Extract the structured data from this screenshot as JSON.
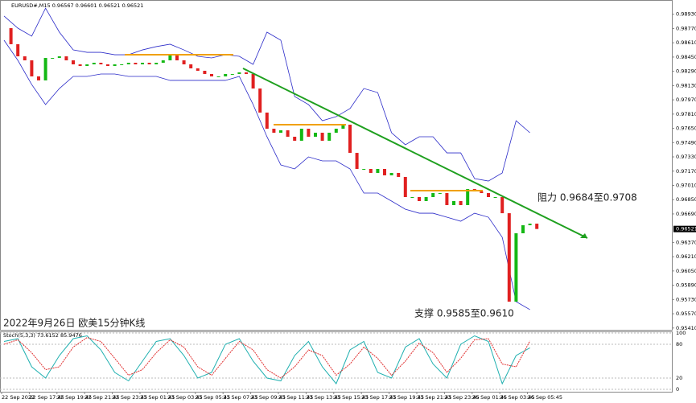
{
  "chart_data": {
    "type": "candlestick",
    "header": "EURUSD#,M15 0.96567 0.96601 0.96521 0.96521",
    "title": "2022年9月26日 欧美15分钟K线",
    "annotations": [
      "阻力 0.9684至0.9708",
      "支撑 0.9585至0.9610"
    ],
    "ylim": [
      0.9539,
      0.9909
    ],
    "yticks": [
      {
        "value": 0.9893,
        "label": "0.98930"
      },
      {
        "value": 0.9877,
        "label": "0.98770"
      },
      {
        "value": 0.9861,
        "label": "0.98610"
      },
      {
        "value": 0.9845,
        "label": "0.98450"
      },
      {
        "value": 0.9829,
        "label": "0.98290"
      },
      {
        "value": 0.9813,
        "label": "0.98130"
      },
      {
        "value": 0.9797,
        "label": "0.97970"
      },
      {
        "value": 0.9781,
        "label": "0.97810"
      },
      {
        "value": 0.9765,
        "label": "0.97650"
      },
      {
        "value": 0.9749,
        "label": "0.97490"
      },
      {
        "value": 0.9733,
        "label": "0.97330"
      },
      {
        "value": 0.9717,
        "label": "0.97170"
      },
      {
        "value": 0.9701,
        "label": "0.97010"
      },
      {
        "value": 0.9685,
        "label": "0.96850"
      },
      {
        "value": 0.9669,
        "label": "0.96690"
      },
      {
        "value": 0.9637,
        "label": "0.96370"
      },
      {
        "value": 0.9621,
        "label": "0.96210"
      },
      {
        "value": 0.9605,
        "label": "0.96050"
      },
      {
        "value": 0.9589,
        "label": "0.95890"
      },
      {
        "value": 0.9573,
        "label": "0.95730"
      },
      {
        "value": 0.9557,
        "label": "0.95570"
      },
      {
        "value": 0.9541,
        "label": "0.95410"
      }
    ],
    "last_price": {
      "value": 0.96521,
      "label": "0.96521"
    },
    "time_labels": [
      "22 Sep 2022",
      "22 Sep 17:45",
      "22 Sep 19:45",
      "22 Sep 21:45",
      "22 Sep 23:45",
      "23 Sep 01:45",
      "23 Sep 03:45",
      "23 Sep 05:45",
      "23 Sep 07:45",
      "23 Sep 09:45",
      "23 Sep 11:45",
      "23 Sep 13:45",
      "23 Sep 15:45",
      "23 Sep 17:45",
      "23 Sep 19:45",
      "23 Sep 21:45",
      "23 Sep 23:45",
      "26 Sep 01:45",
      "26 Sep 03:45",
      "26 Sep 05:45"
    ],
    "up_color": "#14b814",
    "down_color": "#e02020",
    "closes": [
      0.98774,
      0.98594,
      0.98458,
      0.98413,
      0.98233,
      0.98188,
      0.9844,
      0.9844,
      0.98458,
      0.98413,
      0.98368,
      0.9835,
      0.98368,
      0.98386,
      0.98368,
      0.9835,
      0.98368,
      0.98368,
      0.98386,
      0.98368,
      0.98386,
      0.98368,
      0.98386,
      0.98413,
      0.98476,
      0.98413,
      0.98368,
      0.98323,
      0.98296,
      0.9826,
      0.98233,
      0.98233,
      0.9826,
      0.9826,
      0.98278,
      0.9826,
      0.98097,
      0.97827,
      0.97646,
      0.97601,
      0.97628,
      0.97556,
      0.97511,
      0.97646,
      0.97556,
      0.97601,
      0.97511,
      0.97601,
      0.97646,
      0.97691,
      0.97375,
      0.97195,
      0.97195,
      0.9715,
      0.97195,
      0.97123,
      0.9715,
      0.97105,
      0.96879,
      0.96879,
      0.96834,
      0.96879,
      0.96924,
      0.96924,
      0.96789,
      0.96834,
      0.96789,
      0.96969,
      0.96942,
      0.96924,
      0.96879,
      0.96879,
      0.96698,
      0.95706,
      0.96473,
      0.96563,
      0.96581,
      0.96521
    ],
    "bands": {
      "color": "#2a2ac8",
      "upper": [
        0.9891,
        0.98774,
        0.98684,
        0.98998,
        0.98729,
        0.9853,
        0.98503,
        0.98503,
        0.98476,
        0.98476,
        0.9853,
        0.98567,
        0.98594,
        0.9853,
        0.98458,
        0.9844,
        0.98476,
        0.98458,
        0.98368,
        0.98729,
        0.98639,
        0.98007,
        0.97917,
        0.97736,
        0.97781,
        0.97872,
        0.98097,
        0.98052,
        0.97601,
        0.97466,
        0.97556,
        0.97556,
        0.97375,
        0.97375,
        0.97086,
        0.97059,
        0.9715,
        0.97736,
        0.97601
      ],
      "lower": [
        0.98639,
        0.98413,
        0.98142,
        0.97917,
        0.98097,
        0.98233,
        0.98233,
        0.9826,
        0.9826,
        0.98233,
        0.98233,
        0.98233,
        0.98188,
        0.98188,
        0.98188,
        0.98188,
        0.98188,
        0.98233,
        0.97917,
        0.97556,
        0.9724,
        0.97195,
        0.9733,
        0.97285,
        0.97285,
        0.97195,
        0.96924,
        0.96924,
        0.96834,
        0.96743,
        0.96698,
        0.96698,
        0.96653,
        0.96608,
        0.96698,
        0.96653,
        0.96428,
        0.95706,
        0.95616
      ]
    },
    "stoch": {
      "label": "Stoch(5,3,3) 73.6152 85.9476",
      "ylim": [
        0,
        100
      ],
      "yticks": [
        0,
        20,
        80,
        100
      ],
      "series": [
        {
          "name": "K",
          "color": "#20b0b0",
          "values": [
            85,
            90,
            40,
            20,
            60,
            90,
            95,
            70,
            30,
            15,
            50,
            85,
            90,
            60,
            20,
            30,
            80,
            90,
            50,
            20,
            15,
            60,
            85,
            40,
            10,
            70,
            85,
            30,
            20,
            75,
            90,
            45,
            20,
            80,
            95,
            85,
            10,
            60,
            73.6152
          ]
        },
        {
          "name": "D",
          "color": "#e03030",
          "values": [
            80,
            88,
            65,
            35,
            40,
            75,
            92,
            85,
            55,
            25,
            35,
            65,
            88,
            75,
            40,
            25,
            55,
            85,
            70,
            35,
            20,
            40,
            70,
            60,
            25,
            45,
            75,
            55,
            25,
            50,
            82,
            65,
            30,
            55,
            88,
            90,
            45,
            40,
            85.9476
          ]
        }
      ]
    }
  }
}
